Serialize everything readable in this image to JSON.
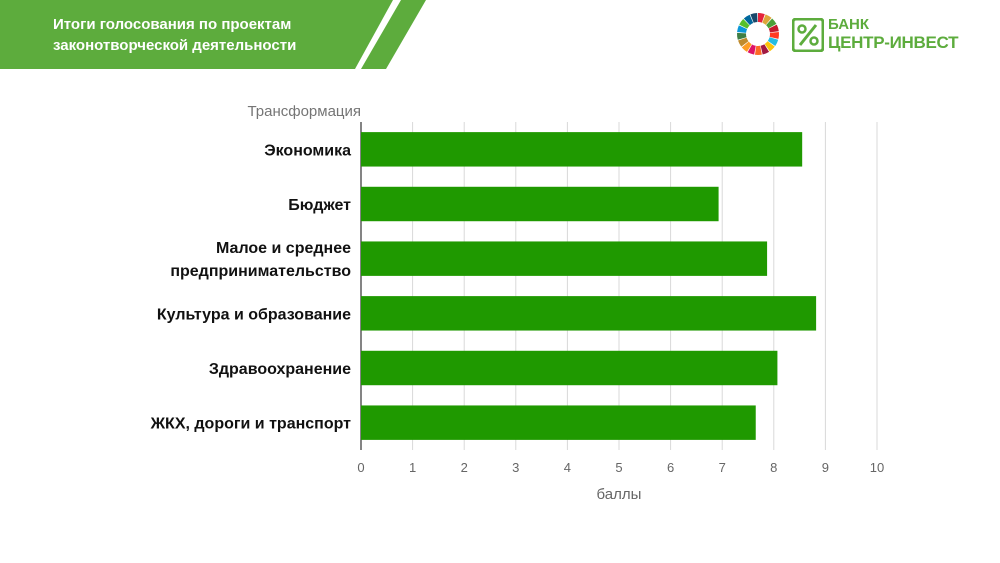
{
  "header": {
    "title_line1": "Итоги голосования по проектам",
    "title_line2": "законотворческой деятельности",
    "band_color": "#5dac3d"
  },
  "logo": {
    "sdg_icon": "sdg-wheel-icon",
    "bank_icon": "centr-invest-mark-icon",
    "bank_line1": "БАНК",
    "bank_line2": "ЦЕНТР-ИНВЕСТ",
    "brand_color": "#5dac3d"
  },
  "chart_data": {
    "type": "bar",
    "orientation": "horizontal",
    "title": "Трансформация",
    "xlabel": "баллы",
    "ylabel": "",
    "categories": [
      [
        "Экономика"
      ],
      [
        "Бюджет"
      ],
      [
        "Малое и среднее",
        "предпринимательство"
      ],
      [
        "Культура и образование"
      ],
      [
        "Здравоохранение"
      ],
      [
        "ЖКХ, дороги и транспорт"
      ]
    ],
    "values": [
      8.55,
      6.93,
      7.87,
      8.82,
      8.07,
      7.65
    ],
    "xlim": [
      0,
      10
    ],
    "xticks": [
      "0",
      "1",
      "2",
      "3",
      "4",
      "5",
      "6",
      "7",
      "8",
      "9",
      "10"
    ],
    "grid": "vertical",
    "legend": "none",
    "bar_color": "#1f9900"
  }
}
